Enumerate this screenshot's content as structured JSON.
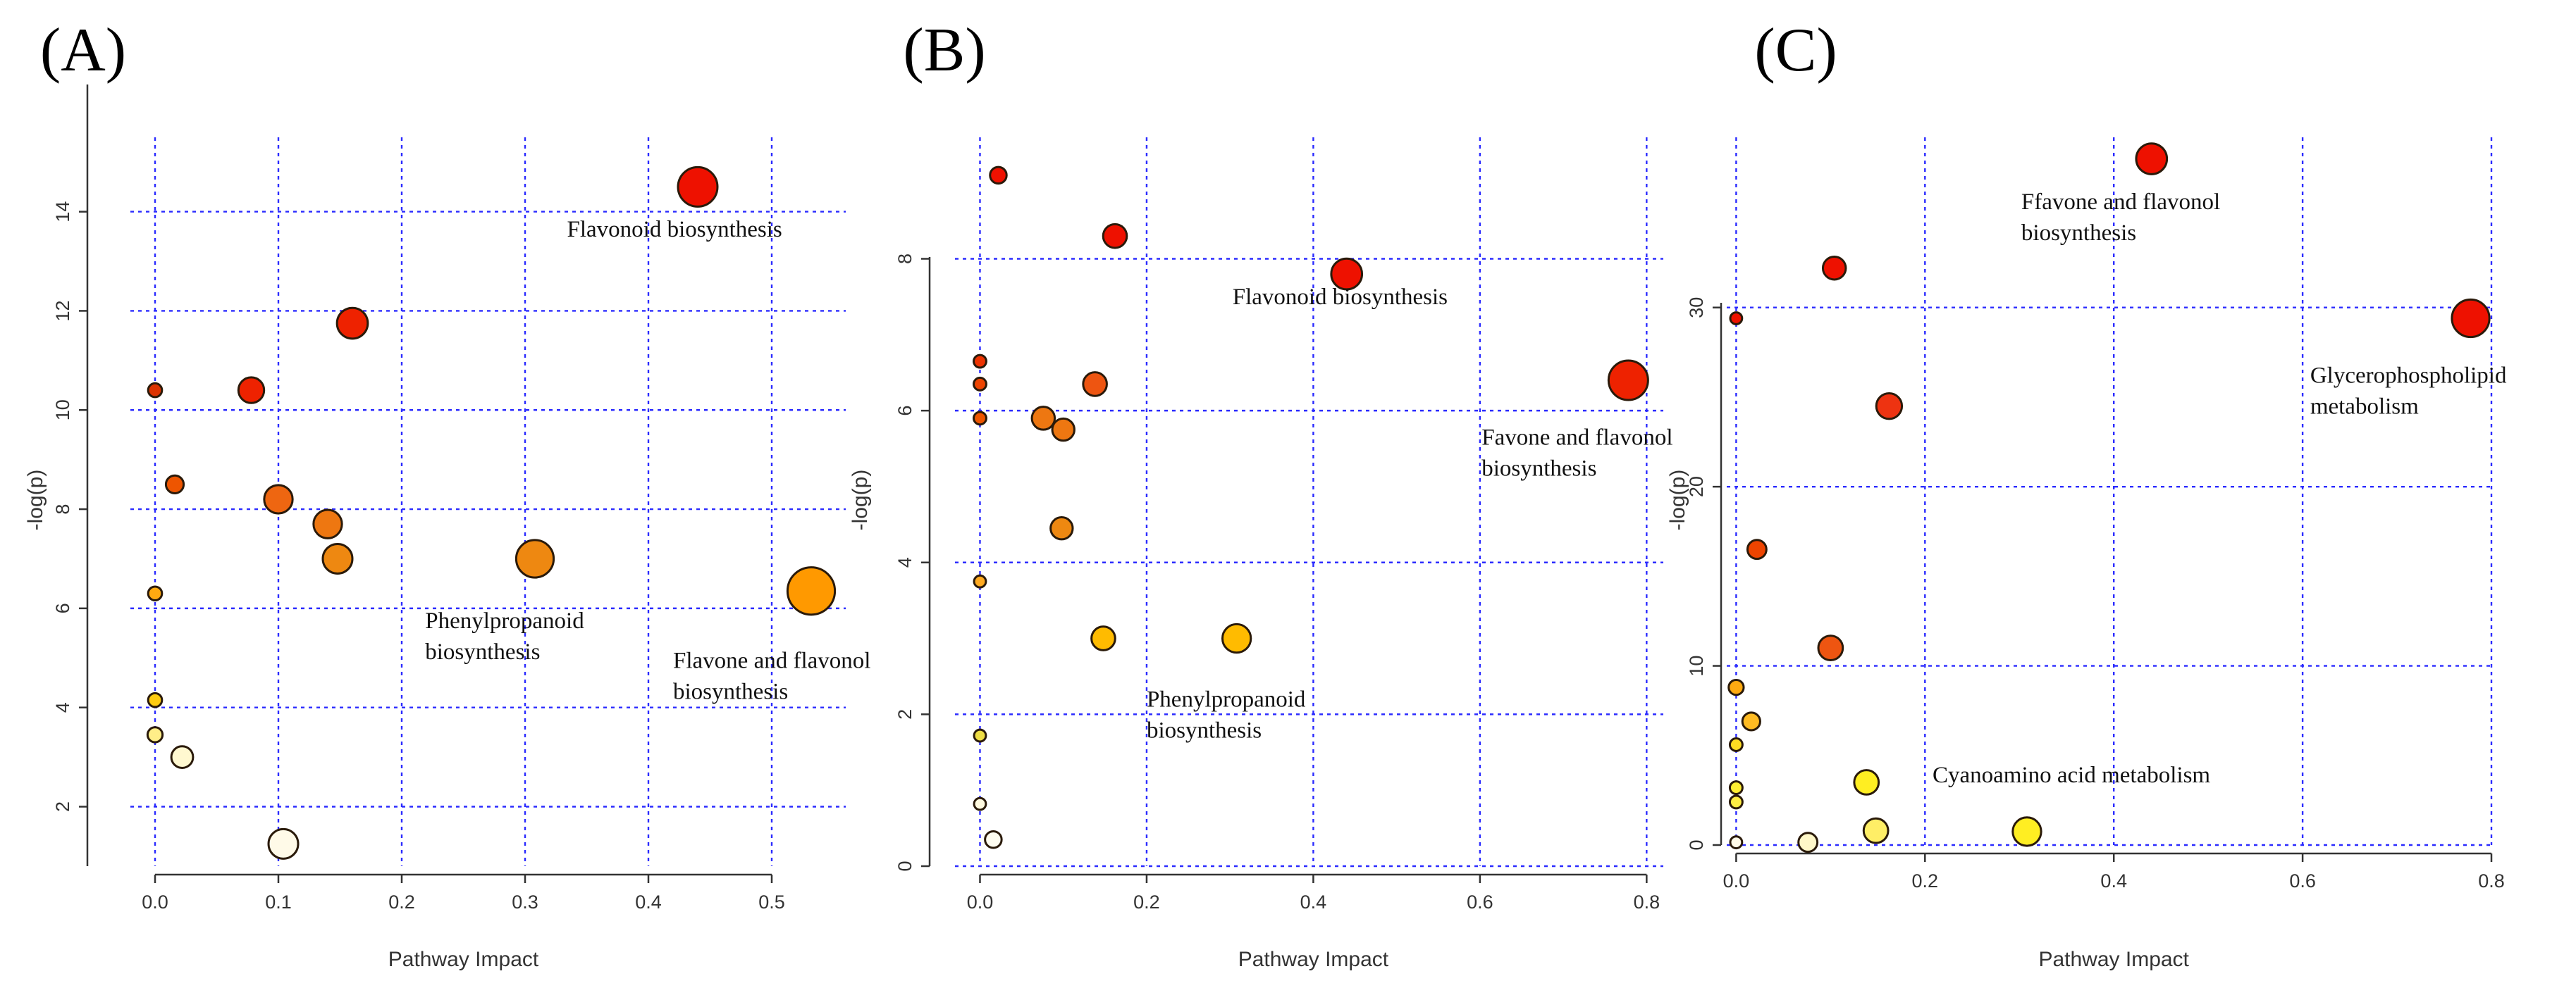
{
  "chart_data": [
    {
      "type": "scatter",
      "panel_label": "(A)",
      "xlabel": "Pathway Impact",
      "ylabel": "-log(p)",
      "xlim": [
        -0.02,
        0.56
      ],
      "ylim": [
        0.8,
        15.5
      ],
      "xticks": [
        0,
        0.1,
        0.2,
        0.3,
        0.4,
        0.5
      ],
      "xtick_labels": [
        "0.0",
        "0.1",
        "0.2",
        "0.3",
        "0.4",
        "0.5"
      ],
      "yticks": [
        2,
        4,
        6,
        8,
        10,
        12,
        14
      ],
      "ytick_labels": [
        "2",
        "4",
        "6",
        "8",
        "10",
        "12",
        "14"
      ],
      "points": [
        {
          "x": 0.44,
          "y": 14.5,
          "r": 1.0,
          "color": "#ee1100"
        },
        {
          "x": 0.16,
          "y": 11.75,
          "r": 0.78,
          "color": "#ee2200"
        },
        {
          "x": 0.078,
          "y": 10.4,
          "r": 0.65,
          "color": "#ee2200"
        },
        {
          "x": 0.0,
          "y": 10.4,
          "r": 0.35,
          "color": "#dd3300"
        },
        {
          "x": 0.016,
          "y": 8.5,
          "r": 0.45,
          "color": "#ee5500"
        },
        {
          "x": 0.1,
          "y": 8.2,
          "r": 0.72,
          "color": "#ee6611"
        },
        {
          "x": 0.14,
          "y": 7.7,
          "r": 0.72,
          "color": "#ee7711"
        },
        {
          "x": 0.148,
          "y": 7.0,
          "r": 0.75,
          "color": "#ee8811"
        },
        {
          "x": 0.308,
          "y": 7.0,
          "r": 0.95,
          "color": "#ee8811"
        },
        {
          "x": 0.532,
          "y": 6.35,
          "r": 1.2,
          "color": "#ff9900"
        },
        {
          "x": 0.0,
          "y": 6.3,
          "r": 0.35,
          "color": "#ffaa11"
        },
        {
          "x": 0.0,
          "y": 4.15,
          "r": 0.35,
          "color": "#ffcc11"
        },
        {
          "x": 0.0,
          "y": 3.45,
          "r": 0.38,
          "color": "#ffee88"
        },
        {
          "x": 0.022,
          "y": 3.0,
          "r": 0.55,
          "color": "#fff8d0"
        },
        {
          "x": 0.104,
          "y": 1.25,
          "r": 0.75,
          "color": "#fffae8"
        }
      ],
      "annotations": [
        {
          "lines": [
            "Flavonoid  biosynthesis"
          ],
          "x": 0.334,
          "y": 13.5
        },
        {
          "lines": [
            "Phenylpropanoid",
            "biosynthesis"
          ],
          "x": 0.219,
          "y": 5.6
        },
        {
          "lines": [
            "Flavone  and flavonol",
            "biosynthesis"
          ],
          "x": 0.42,
          "y": 4.8
        }
      ]
    },
    {
      "type": "scatter",
      "panel_label": "(B)",
      "xlabel": "Pathway Impact",
      "ylabel": "-log(p)",
      "xlim": [
        -0.03,
        0.82
      ],
      "ylim": [
        0,
        9.6
      ],
      "xticks": [
        0,
        0.2,
        0.4,
        0.6,
        0.8
      ],
      "xtick_labels": [
        "0.0",
        "0.2",
        "0.4",
        "0.6",
        "0.8"
      ],
      "yticks": [
        0,
        2,
        4,
        6,
        8
      ],
      "ytick_labels": [
        "0",
        "2",
        "4",
        "6",
        "8"
      ],
      "points": [
        {
          "x": 0.022,
          "y": 9.1,
          "r": 0.42,
          "color": "#ee1100"
        },
        {
          "x": 0.162,
          "y": 8.3,
          "r": 0.6,
          "color": "#ee1100"
        },
        {
          "x": 0.44,
          "y": 7.8,
          "r": 0.78,
          "color": "#ee1100"
        },
        {
          "x": 0.778,
          "y": 6.4,
          "r": 1.0,
          "color": "#ee2200"
        },
        {
          "x": 0.0,
          "y": 6.65,
          "r": 0.32,
          "color": "#ee3300"
        },
        {
          "x": 0.0,
          "y": 6.35,
          "r": 0.32,
          "color": "#ee4400"
        },
        {
          "x": 0.0,
          "y": 5.9,
          "r": 0.32,
          "color": "#ee5500"
        },
        {
          "x": 0.138,
          "y": 6.35,
          "r": 0.6,
          "color": "#ee5511"
        },
        {
          "x": 0.076,
          "y": 5.9,
          "r": 0.58,
          "color": "#ee7711"
        },
        {
          "x": 0.1,
          "y": 5.75,
          "r": 0.56,
          "color": "#ee7711"
        },
        {
          "x": 0.098,
          "y": 4.45,
          "r": 0.56,
          "color": "#ee8811"
        },
        {
          "x": 0.0,
          "y": 3.75,
          "r": 0.3,
          "color": "#ffaa22"
        },
        {
          "x": 0.148,
          "y": 3.0,
          "r": 0.6,
          "color": "#ffbb00"
        },
        {
          "x": 0.308,
          "y": 3.0,
          "r": 0.72,
          "color": "#ffbb00"
        },
        {
          "x": 0.0,
          "y": 1.72,
          "r": 0.3,
          "color": "#eedd44"
        },
        {
          "x": 0.0,
          "y": 0.82,
          "r": 0.3,
          "color": "#fffae0"
        },
        {
          "x": 0.016,
          "y": 0.35,
          "r": 0.42,
          "color": "#fffdf0"
        }
      ],
      "annotations": [
        {
          "lines": [
            "Flavonoid  biosynthesis"
          ],
          "x": 0.303,
          "y": 7.4
        },
        {
          "lines": [
            "Favone and flavonol",
            "biosynthesis"
          ],
          "x": 0.602,
          "y": 5.55
        },
        {
          "lines": [
            "Phenylpropanoid",
            "biosynthesis"
          ],
          "x": 0.2,
          "y": 2.1
        }
      ]
    },
    {
      "type": "scatter",
      "panel_label": "(C)",
      "xlabel": "Pathway Impact",
      "ylabel": "-log(p)",
      "xlim": [
        -0.01,
        0.8
      ],
      "ylim": [
        0,
        39.5
      ],
      "xticks": [
        0,
        0.2,
        0.4,
        0.6,
        0.8
      ],
      "xtick_labels": [
        "0.0",
        "0.2",
        "0.4",
        "0.6",
        "0.8"
      ],
      "yticks": [
        0,
        10,
        20,
        30
      ],
      "ytick_labels": [
        "0",
        "10",
        "20",
        "30"
      ],
      "points": [
        {
          "x": 0.44,
          "y": 38.3,
          "r": 0.78,
          "color": "#ee1100"
        },
        {
          "x": 0.104,
          "y": 32.2,
          "r": 0.58,
          "color": "#ee1100"
        },
        {
          "x": 0.0,
          "y": 29.4,
          "r": 0.3,
          "color": "#ee1100"
        },
        {
          "x": 0.778,
          "y": 29.4,
          "r": 0.95,
          "color": "#ee1100"
        },
        {
          "x": 0.162,
          "y": 24.5,
          "r": 0.65,
          "color": "#ee3311"
        },
        {
          "x": 0.022,
          "y": 16.5,
          "r": 0.48,
          "color": "#ee4400"
        },
        {
          "x": 0.1,
          "y": 11.0,
          "r": 0.62,
          "color": "#ee5511"
        },
        {
          "x": 0.0,
          "y": 8.8,
          "r": 0.38,
          "color": "#ffaa11"
        },
        {
          "x": 0.016,
          "y": 6.9,
          "r": 0.45,
          "color": "#ffbb22"
        },
        {
          "x": 0.0,
          "y": 5.6,
          "r": 0.32,
          "color": "#ffdd22"
        },
        {
          "x": 0.0,
          "y": 3.2,
          "r": 0.32,
          "color": "#ffee33"
        },
        {
          "x": 0.0,
          "y": 2.4,
          "r": 0.32,
          "color": "#ffee44"
        },
        {
          "x": 0.138,
          "y": 3.5,
          "r": 0.62,
          "color": "#ffee22"
        },
        {
          "x": 0.148,
          "y": 0.8,
          "r": 0.62,
          "color": "#ffee66"
        },
        {
          "x": 0.308,
          "y": 0.75,
          "r": 0.72,
          "color": "#ffee22"
        },
        {
          "x": 0.076,
          "y": 0.15,
          "r": 0.48,
          "color": "#fff8c8"
        },
        {
          "x": 0.0,
          "y": 0.15,
          "r": 0.3,
          "color": "#fffae8"
        }
      ],
      "annotations": [
        {
          "lines": [
            "Ffavone and flavonol",
            "biosynthesis"
          ],
          "x": 0.302,
          "y": 35.5
        },
        {
          "lines": [
            "Glycerophospholipid",
            "metabolism"
          ],
          "x": 0.608,
          "y": 25.8
        },
        {
          "lines": [
            "Cyanoamino  acid metabolism"
          ],
          "x": 0.208,
          "y": 3.5
        }
      ]
    }
  ]
}
